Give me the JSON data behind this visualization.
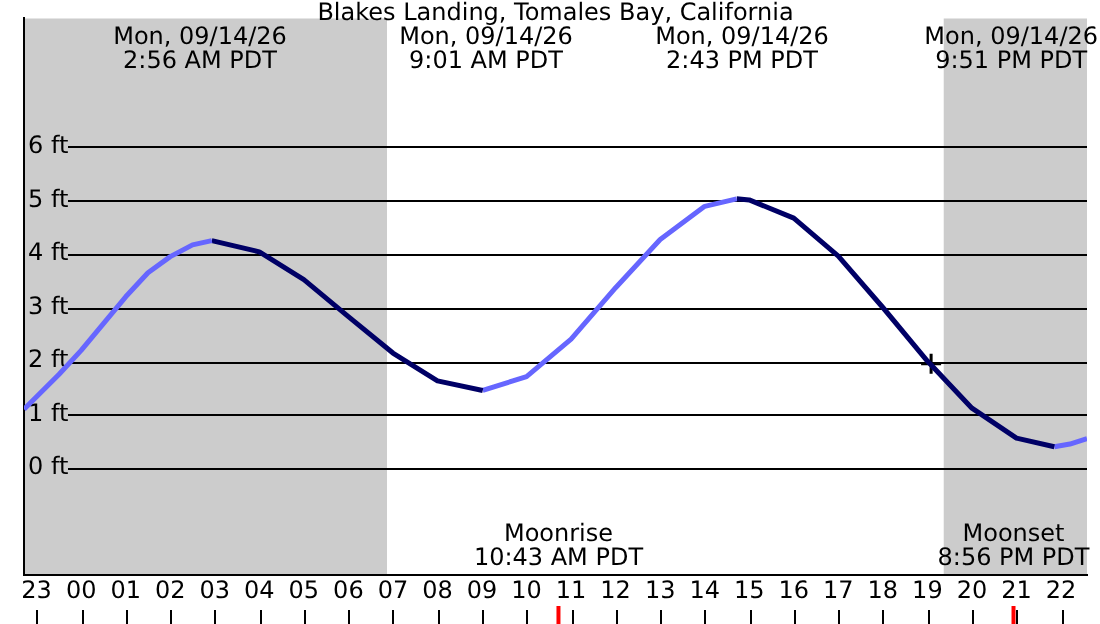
{
  "chart_data": {
    "type": "line",
    "title": "Blakes Landing, Tomales Bay, California",
    "xlim": [
      "--09-13T22:43",
      "--09-14T22:35"
    ],
    "ylim": [
      -2,
      8.4
    ],
    "xticks": [
      {
        "value": "--09-13T23:00",
        "label": "23"
      },
      {
        "value": "--09-14T00:00",
        "label": "00"
      },
      {
        "value": "--09-14T01:00",
        "label": "01"
      },
      {
        "value": "--09-14T02:00",
        "label": "02"
      },
      {
        "value": "--09-14T03:00",
        "label": "03"
      },
      {
        "value": "--09-14T04:00",
        "label": "04"
      },
      {
        "value": "--09-14T05:00",
        "label": "05"
      },
      {
        "value": "--09-14T06:00",
        "label": "06"
      },
      {
        "value": "--09-14T07:00",
        "label": "07"
      },
      {
        "value": "--09-14T08:00",
        "label": "08"
      },
      {
        "value": "--09-14T09:00",
        "label": "09"
      },
      {
        "value": "--09-14T10:00",
        "label": "10"
      },
      {
        "value": "--09-14T11:00",
        "label": "11"
      },
      {
        "value": "--09-14T12:00",
        "label": "12"
      },
      {
        "value": "--09-14T13:00",
        "label": "13"
      },
      {
        "value": "--09-14T14:00",
        "label": "14"
      },
      {
        "value": "--09-14T15:00",
        "label": "15"
      },
      {
        "value": "--09-14T16:00",
        "label": "16"
      },
      {
        "value": "--09-14T17:00",
        "label": "17"
      },
      {
        "value": "--09-14T18:00",
        "label": "18"
      },
      {
        "value": "--09-14T19:00",
        "label": "19"
      },
      {
        "value": "--09-14T20:00",
        "label": "20"
      },
      {
        "value": "--09-14T21:00",
        "label": "21"
      },
      {
        "value": "--09-14T22:00",
        "label": "22"
      }
    ],
    "yticks": [
      {
        "value": 0,
        "label": "0 ft"
      },
      {
        "value": 1,
        "label": "1 ft"
      },
      {
        "value": 2,
        "label": "2 ft"
      },
      {
        "value": 3,
        "label": "3 ft"
      },
      {
        "value": 4,
        "label": "4 ft"
      },
      {
        "value": 5,
        "label": "5 ft"
      },
      {
        "value": 6,
        "label": "6 ft"
      }
    ],
    "grid": "y",
    "marker": "none",
    "line_style": "solid",
    "series": [
      {
        "color": "#6666ff",
        "x": [
          "--09-13T22:43",
          "--09-13T23:30",
          "--09-14T00:00",
          "--09-14T00:30",
          "--09-14T01:00",
          "--09-14T01:30",
          "--09-14T02:00",
          "--09-14T02:30",
          "--09-14T02:56"
        ],
        "values": [
          1.1,
          1.75,
          2.2,
          2.7,
          3.2,
          3.65,
          3.95,
          4.17,
          4.25
        ]
      },
      {
        "color": "#000066",
        "x": [
          "--09-14T02:56",
          "--09-14T04:00",
          "--09-14T05:00",
          "--09-14T06:00",
          "--09-14T07:00",
          "--09-14T08:00",
          "--09-14T09:01"
        ],
        "values": [
          4.25,
          4.04,
          3.52,
          2.83,
          2.15,
          1.63,
          1.45
        ]
      },
      {
        "color": "#6666ff",
        "x": [
          "--09-14T09:01",
          "--09-14T10:00",
          "--09-14T11:00",
          "--09-14T12:00",
          "--09-14T13:00",
          "--09-14T14:00",
          "--09-14T14:43"
        ],
        "values": [
          1.45,
          1.71,
          2.41,
          3.37,
          4.27,
          4.89,
          5.03
        ]
      },
      {
        "color": "#000066",
        "x": [
          "--09-14T14:43",
          "--09-14T15:00",
          "--09-14T16:00",
          "--09-14T17:00",
          "--09-14T18:00",
          "--09-14T19:00",
          "--09-14T20:00",
          "--09-14T21:00",
          "--09-14T21:51"
        ],
        "values": [
          5.03,
          5.01,
          4.67,
          3.96,
          3.0,
          2.0,
          1.12,
          0.56,
          0.4
        ]
      },
      {
        "color": "#6666ff",
        "x": [
          "--09-14T21:51",
          "--09-14T22:12",
          "--09-14T22:35"
        ],
        "values": [
          0.4,
          0.45,
          0.55
        ]
      },
      {
        "type": "scatter",
        "marker": "cross",
        "color": "#000000",
        "x": [
          "--09-14T19:05"
        ],
        "values": [
          1.95
        ]
      }
    ],
    "bands": [
      {
        "axis": "x",
        "from": "--09-13T22:43",
        "to": "--09-14T06:52",
        "color": "#cccccc"
      },
      {
        "axis": "x",
        "from": "--09-14T19:22",
        "to": "--09-14T22:35",
        "color": "#cccccc"
      }
    ],
    "ref_lines": [
      {
        "axis": "x",
        "value": "--09-14T10:43",
        "label": "Moonrise\n10:43 AM PDT",
        "color": "#ff0000"
      },
      {
        "axis": "x",
        "value": "--09-14T20:56",
        "label": "Moonset\n8:56 PM PDT",
        "color": "#ff0000"
      }
    ],
    "annotations": [
      "Mon, 09/14/26\n2:56 AM PDT",
      "Mon, 09/14/26\n9:01 AM PDT",
      "Mon, 09/14/26\n2:43 PM PDT",
      "Mon, 09/14/26\n9:51 PM PDT"
    ]
  }
}
